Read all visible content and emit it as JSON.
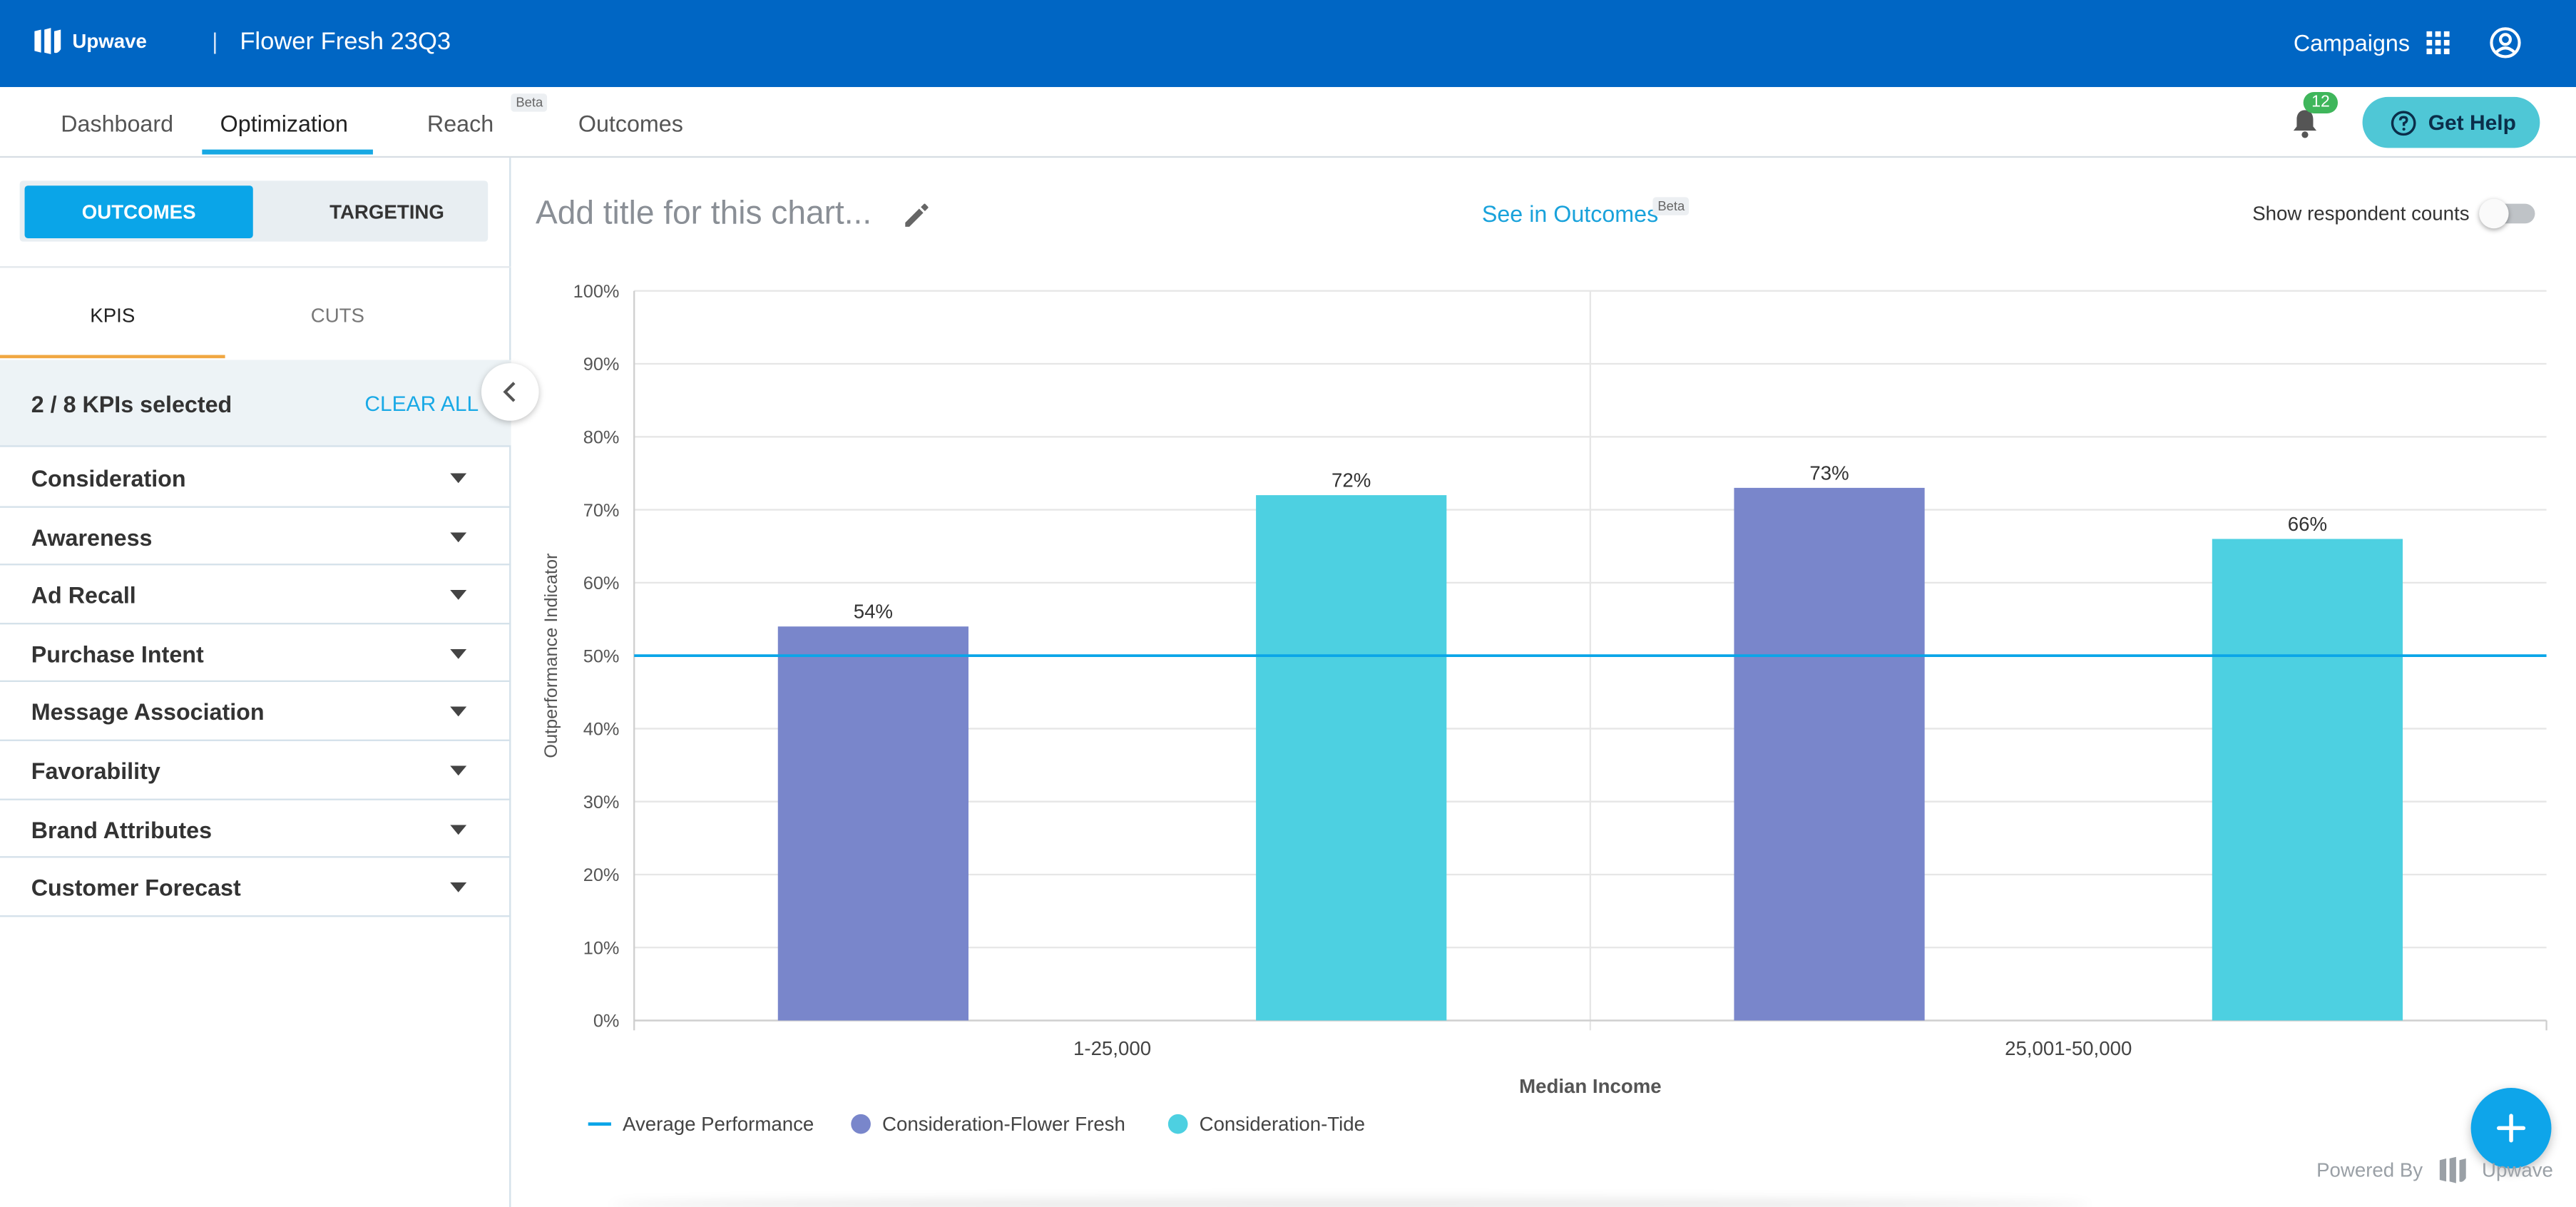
{
  "app": {
    "brand": "Upwave",
    "campaign_title": "Flower Fresh 23Q3",
    "campaigns_label": "Campaigns"
  },
  "nav": {
    "tabs": [
      "Dashboard",
      "Optimization",
      "Reach",
      "Outcomes"
    ],
    "active_tab": "Optimization",
    "reach_badge": "Beta",
    "notification_count": "12",
    "help_label": "Get Help"
  },
  "sidebar": {
    "segments": [
      "OUTCOMES",
      "TARGETING"
    ],
    "active_segment": "OUTCOMES",
    "subtabs": [
      "KPIS",
      "CUTS"
    ],
    "active_subtab": "KPIS",
    "kpi_count": "2 / 8 KPIs selected",
    "clear_all": "CLEAR ALL",
    "kpis": [
      "Consideration",
      "Awareness",
      "Ad Recall",
      "Purchase Intent",
      "Message Association",
      "Favorability",
      "Brand Attributes",
      "Customer Forecast"
    ]
  },
  "main": {
    "title_placeholder": "Add title for this chart...",
    "see_in_outcomes": "See in Outcomes",
    "beta_badge": "Beta",
    "respondent_counts_label": "Show respondent counts",
    "respondent_counts_on": false,
    "powered_by": "Powered By",
    "powered_brand": "Upwave"
  },
  "chart_data": {
    "type": "bar",
    "categories": [
      "1-25,000",
      "25,001-50,000"
    ],
    "series": [
      {
        "name": "Consideration-Flower Fresh",
        "values": [
          54,
          73
        ],
        "color": "#7986cb"
      },
      {
        "name": "Consideration-Tide",
        "values": [
          72,
          66
        ],
        "color": "#4dd0e1"
      }
    ],
    "reference_line": {
      "name": "Average Performance",
      "value": 50,
      "color": "#0aa5e8"
    },
    "data_labels": [
      "54%",
      "72%",
      "73%",
      "66%"
    ],
    "xlabel": "Median Income",
    "ylabel": "Outperformance Indicator",
    "ylim": [
      0,
      100
    ],
    "yticks": [
      "0%",
      "10%",
      "20%",
      "30%",
      "40%",
      "50%",
      "60%",
      "70%",
      "80%",
      "90%",
      "100%"
    ],
    "grid": true,
    "legend_position": "bottom-left"
  }
}
